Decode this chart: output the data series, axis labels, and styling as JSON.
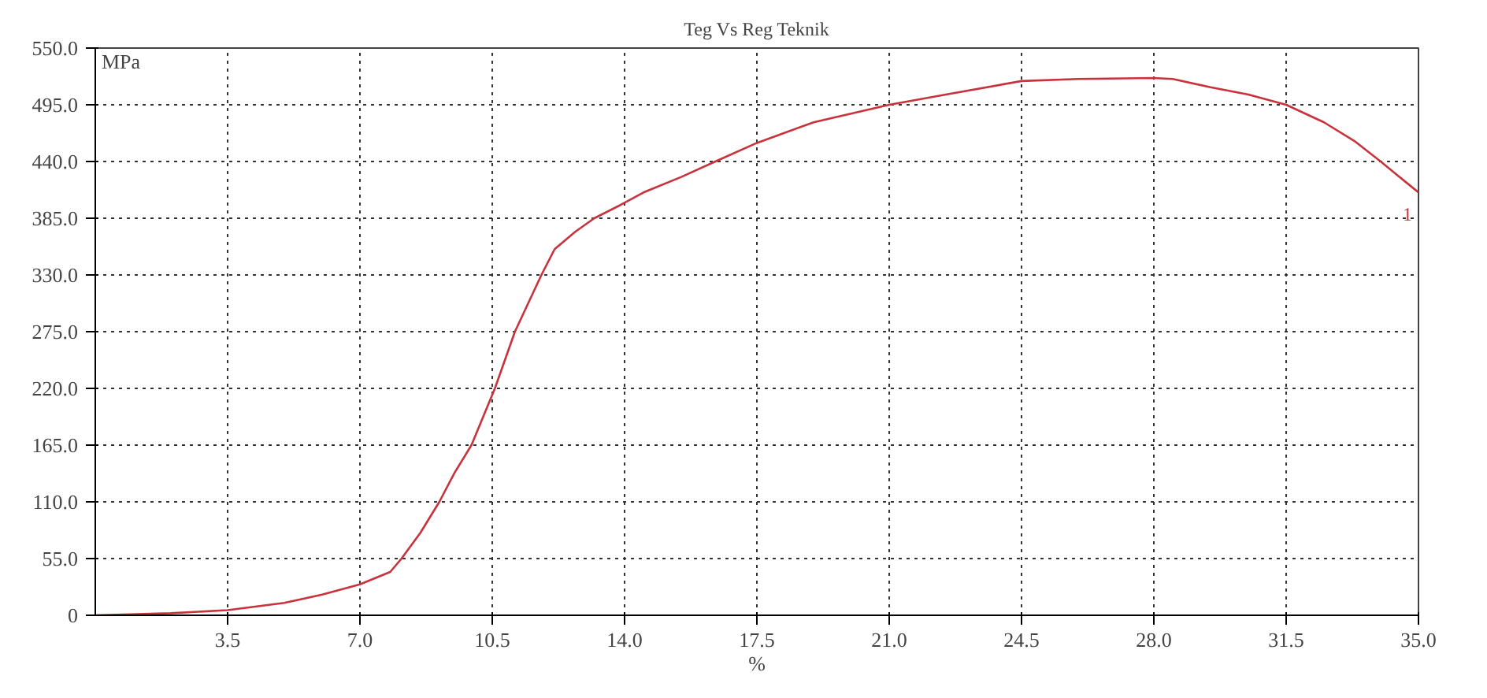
{
  "chart_data": {
    "type": "line",
    "title": "Teg Vs Reg Teknik",
    "xlabel": "%",
    "ylabel": "MPa",
    "xlim": [
      0,
      35
    ],
    "ylim": [
      0,
      550
    ],
    "xticks": [
      {
        "value": 3.5,
        "label": "3.5"
      },
      {
        "value": 7,
        "label": "7.0"
      },
      {
        "value": 10.5,
        "label": "10.5"
      },
      {
        "value": 14,
        "label": "14.0"
      },
      {
        "value": 17.5,
        "label": "17.5"
      },
      {
        "value": 21,
        "label": "21.0"
      },
      {
        "value": 24.5,
        "label": "24.5"
      },
      {
        "value": 28,
        "label": "28.0"
      },
      {
        "value": 31.5,
        "label": "31.5"
      },
      {
        "value": 35,
        "label": "35.0"
      }
    ],
    "yticks": [
      0,
      {
        "value": 55,
        "label": "55.0"
      },
      {
        "value": 110,
        "label": "110.0"
      },
      {
        "value": 165,
        "label": "165.0"
      },
      {
        "value": 220,
        "label": "220.0"
      },
      {
        "value": 275,
        "label": "275.0"
      },
      {
        "value": 330,
        "label": "330.0"
      },
      {
        "value": 385,
        "label": "385.0"
      },
      {
        "value": 440,
        "label": "440.0"
      },
      {
        "value": 495,
        "label": "495.0"
      },
      {
        "value": 550,
        "label": "550.0"
      }
    ],
    "grid": true,
    "line_style": "solid",
    "marker": "none",
    "series": [
      {
        "name": "1",
        "color": "#c8323c",
        "x": [
          0,
          2,
          3.5,
          5,
          6,
          7,
          7.8,
          8.1,
          8.6,
          9.1,
          9.5,
          9.95,
          10.57,
          11.1,
          11.8,
          12.15,
          12.7,
          13.2,
          13.9,
          14.5,
          15.5,
          16.4,
          17.5,
          19,
          21,
          22.5,
          24.5,
          26,
          28,
          28.5,
          29.5,
          30.5,
          31.5,
          32.5,
          33.3,
          34,
          34.5,
          35
        ],
        "values": [
          0,
          2,
          5,
          12,
          20,
          30,
          42,
          55,
          80,
          110,
          138,
          165,
          220,
          275,
          330,
          355,
          372,
          385,
          398,
          410,
          425,
          440,
          458,
          478,
          495,
          505,
          518,
          520,
          521,
          520,
          512,
          505,
          495,
          478,
          460,
          440,
          425,
          410
        ]
      }
    ]
  }
}
